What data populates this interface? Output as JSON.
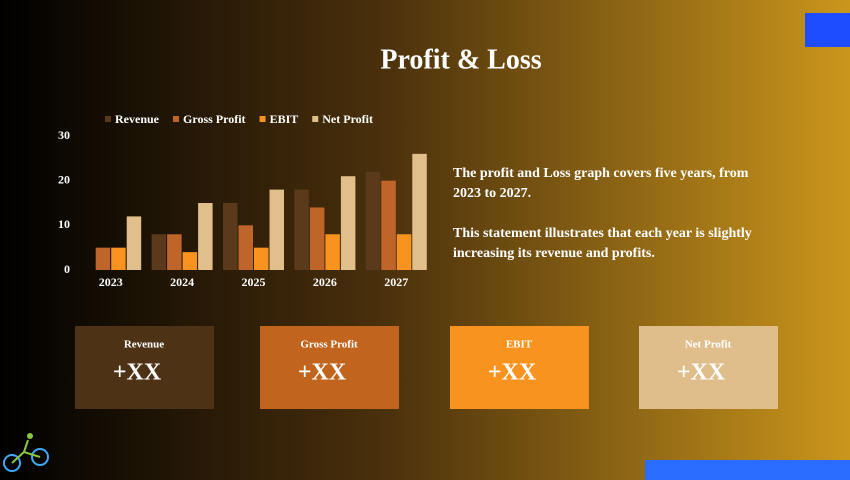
{
  "title": "Profit & Loss",
  "chart_data": {
    "type": "bar",
    "categories": [
      "2023",
      "2024",
      "2025",
      "2026",
      "2027"
    ],
    "series": [
      {
        "name": "Revenue",
        "color": "#5a3a1a",
        "values": [
          0,
          8,
          15,
          18,
          22
        ]
      },
      {
        "name": "Gross Profit",
        "color": "#c0652a",
        "values": [
          5,
          8,
          10,
          14,
          20
        ]
      },
      {
        "name": "EBIT",
        "color": "#f7931e",
        "values": [
          5,
          4,
          5,
          8,
          8
        ]
      },
      {
        "name": "Net Profit",
        "color": "#e0bf8a",
        "values": [
          12,
          15,
          18,
          21,
          26
        ]
      }
    ],
    "ylim": [
      0,
      30
    ],
    "yticks": [
      0,
      10,
      20,
      30
    ],
    "grid": false,
    "legend": "top"
  },
  "description": [
    "The profit and Loss graph covers five years, from 2023 to 2027.",
    "This statement illustrates that each year is slightly increasing its revenue and profits."
  ],
  "cards": [
    {
      "label": "Revenue",
      "value": "+XX",
      "color": "#4e3216"
    },
    {
      "label": "Gross Profit",
      "value": "+XX",
      "color": "#c0641e"
    },
    {
      "label": "EBIT",
      "value": "+XX",
      "color": "#f7931e"
    },
    {
      "label": "Net Profit",
      "value": "+XX",
      "color": "#dfbe8c"
    }
  ]
}
